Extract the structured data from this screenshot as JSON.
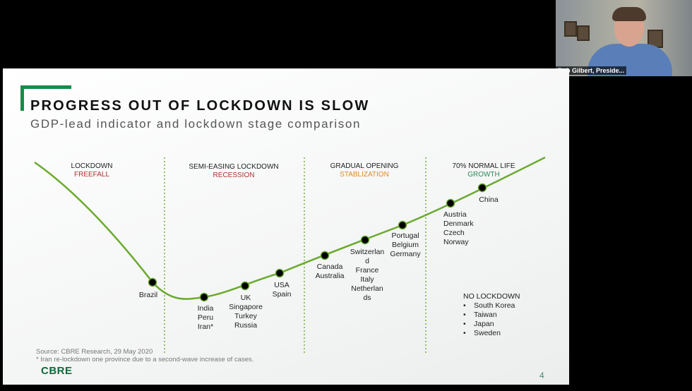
{
  "participant": {
    "name": "Bob Gilbert, Preside..."
  },
  "slide": {
    "title": "PROGRESS OUT OF LOCKDOWN IS SLOW",
    "subtitle": "GDP-lead indicator and lockdown stage comparison",
    "stages": [
      {
        "name": "LOCKDOWN",
        "status": "FREEFALL",
        "status_color": "#b03030"
      },
      {
        "name": "SEMI-EASING LOCKDOWN",
        "status": "RECESSION",
        "status_color": "#b03030"
      },
      {
        "name": "GRADUAL OPENING",
        "status": "STABLIZATION",
        "status_color": "#e08a2a"
      },
      {
        "name": "70% NORMAL LIFE",
        "status": "GROWTH",
        "status_color": "#2a8a5a"
      }
    ],
    "points": [
      {
        "lines": [
          "Brazil"
        ]
      },
      {
        "lines": [
          "India",
          "Peru",
          "Iran*"
        ]
      },
      {
        "lines": [
          "UK",
          "Singapore",
          "Turkey",
          "Russia"
        ]
      },
      {
        "lines": [
          "USA",
          "Spain"
        ]
      },
      {
        "lines": [
          "Canada",
          "Australia"
        ]
      },
      {
        "lines": [
          "Switzerlan",
          "d",
          "France",
          "Italy",
          "Netherlan",
          "ds"
        ]
      },
      {
        "lines": [
          "Portugal",
          "Belgium",
          "Germany"
        ]
      },
      {
        "lines": [
          "Austria",
          "Denmark",
          "Czech",
          "Norway"
        ]
      },
      {
        "lines": [
          "China"
        ]
      }
    ],
    "no_lockdown": {
      "title": "NO LOCKDOWN",
      "items": [
        "South Korea",
        "Taiwan",
        "Japan",
        "Sweden"
      ]
    },
    "source": "Source: CBRE Research, 29 May 2020",
    "footnote": "* Iran re-lockdown one province due to a second-wave increase of cases.",
    "logo": "CBRE",
    "page_number": "4",
    "colors": {
      "curve": "#6aaa2e",
      "divider": "#6aaa2e",
      "accent": "#1b8a4a"
    }
  }
}
